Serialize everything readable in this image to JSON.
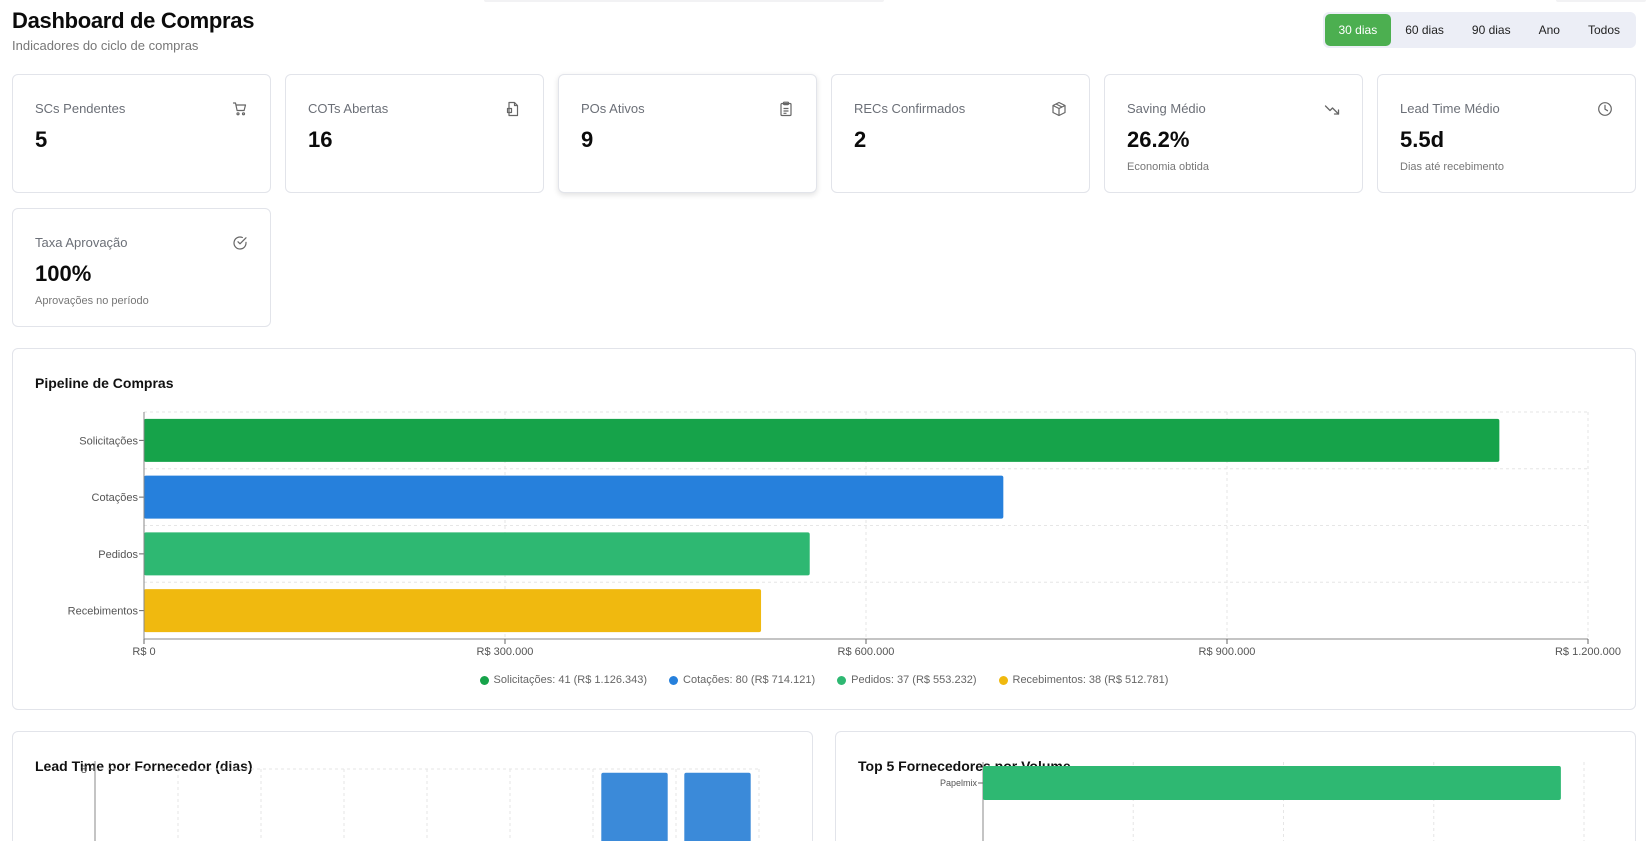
{
  "header": {
    "title": "Dashboard de Compras",
    "subtitle": "Indicadores do ciclo de compras"
  },
  "period_filter": {
    "options": [
      "30 dias",
      "60 dias",
      "90 dias",
      "Ano",
      "Todos"
    ],
    "selected": "30 dias"
  },
  "cards": [
    {
      "label": "SCs Pendentes",
      "value": "5",
      "note": "",
      "icon": "shopping-cart-icon"
    },
    {
      "label": "COTs Abertas",
      "value": "16",
      "note": "",
      "icon": "document-icon"
    },
    {
      "label": "POs Ativos",
      "value": "9",
      "note": "",
      "icon": "clipboard-icon"
    },
    {
      "label": "RECs Confirmados",
      "value": "2",
      "note": "",
      "icon": "package-icon"
    },
    {
      "label": "Saving Médio",
      "value": "26.2%",
      "note": "Economia obtida",
      "icon": "trending-down-icon"
    },
    {
      "label": "Lead Time Médio",
      "value": "5.5d",
      "note": "Dias até recebimento",
      "icon": "clock-icon"
    },
    {
      "label": "Taxa Aprovação",
      "value": "100%",
      "note": "Aprovações no período",
      "icon": "check-circle-icon"
    }
  ],
  "pipeline": {
    "title": "Pipeline de Compras",
    "legend": [
      "Solicitações: 41 (R$ 1.126.343)",
      "Cotações: 80 (R$ 714.121)",
      "Pedidos: 37 (R$ 553.232)",
      "Recebimentos: 38 (R$ 512.781)"
    ]
  },
  "lead_time": {
    "title": "Lead Time por Fornecedor (dias)"
  },
  "top5": {
    "title": "Top 5 Fornecedores por Volume"
  },
  "colors": {
    "accent": "#4caf50",
    "solicitacoes": "#16a34a",
    "cotacoes": "#2680dc",
    "pedidos": "#2eb872",
    "recebimentos": "#f0b90f",
    "lead_bar": "#3b8ad9"
  },
  "chart_data": [
    {
      "type": "bar",
      "orientation": "horizontal",
      "categories": [
        "Solicitações",
        "Cotações",
        "Pedidos",
        "Recebimentos"
      ],
      "values": [
        1126343,
        714121,
        553232,
        512781
      ],
      "x_ticks": [
        "R$ 0",
        "R$ 300.000",
        "R$ 600.000",
        "R$ 900.000",
        "R$ 1.200.000"
      ],
      "xlim": [
        0,
        1200000
      ],
      "grid": true,
      "legend_position": "bottom"
    },
    {
      "type": "bar",
      "categories": [
        "",
        "",
        "",
        "",
        "",
        "",
        "",
        ""
      ],
      "values": [
        null,
        null,
        null,
        null,
        null,
        null,
        7.6,
        7.6
      ],
      "y_ticks": [
        "8"
      ],
      "ylim": [
        0,
        8
      ],
      "grid": true
    },
    {
      "type": "bar",
      "orientation": "horizontal",
      "categories": [
        "Papelmix"
      ],
      "values": [
        1
      ],
      "xlim": [
        0,
        1.04
      ],
      "grid": true
    }
  ]
}
